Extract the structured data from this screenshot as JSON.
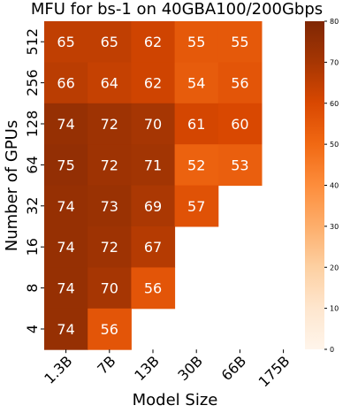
{
  "chart_data": {
    "type": "heatmap",
    "title": "MFU  for bs-1 on 40GBA100/200Gbps",
    "xlabel": "Model Size",
    "ylabel": "Number of GPUs",
    "x_categories": [
      "1.3B",
      "7B",
      "13B",
      "30B",
      "66B",
      "175B"
    ],
    "y_categories": [
      "512",
      "256",
      "128",
      "64",
      "32",
      "16",
      "8",
      "4"
    ],
    "values": [
      [
        65,
        65,
        62,
        55,
        55,
        null
      ],
      [
        66,
        64,
        62,
        54,
        56,
        null
      ],
      [
        74,
        72,
        70,
        61,
        60,
        null
      ],
      [
        75,
        72,
        71,
        52,
        53,
        null
      ],
      [
        74,
        73,
        69,
        57,
        null,
        null
      ],
      [
        74,
        72,
        67,
        null,
        null,
        null
      ],
      [
        74,
        70,
        56,
        null,
        null,
        null
      ],
      [
        74,
        56,
        null,
        null,
        null,
        null
      ]
    ],
    "colorbar": {
      "range": [
        0,
        80
      ],
      "ticks": [
        "0",
        "10",
        "20",
        "30",
        "40",
        "50",
        "60",
        "70",
        "80"
      ],
      "colormap": "Oranges"
    },
    "annotation_color": "#ffffff"
  }
}
